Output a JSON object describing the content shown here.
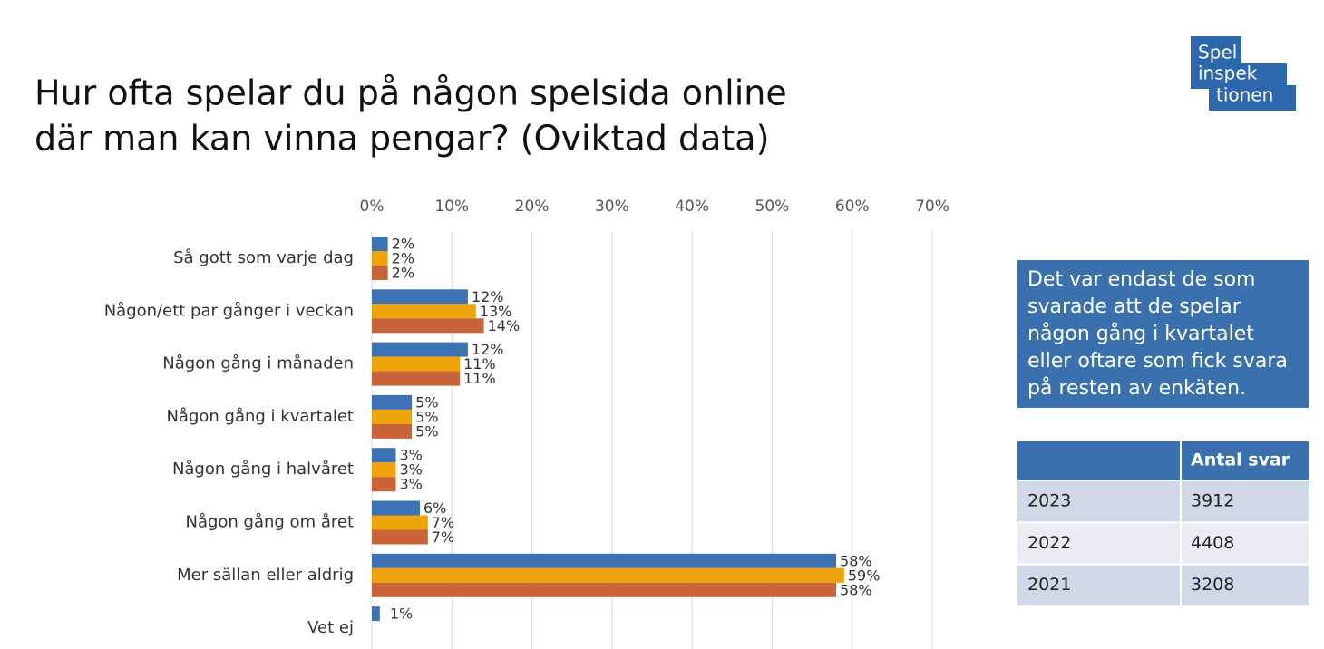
{
  "chart_data": {
    "type": "hbar",
    "title": [
      "Hur ofta spelar du på någon spelsida online",
      "där man kan vinna pengar? (Oviktad data)"
    ],
    "categories": [
      "Så gott som varje dag",
      "Någon/ett par gånger i veckan",
      "Någon gång i månaden",
      "Någon gång i kvartalet",
      "Någon gång i halvåret",
      "Någon gång om året",
      "Mer sällan eller aldrig",
      "Vet ej"
    ],
    "series": [
      {
        "color": "#3d72b4",
        "values": [
          2,
          12,
          12,
          5,
          3,
          6,
          58,
          1
        ],
        "value_labels": [
          "2%",
          "12%",
          "12%",
          "5%",
          "3%",
          "6%",
          "58%",
          "1%"
        ]
      },
      {
        "color": "#eea30b",
        "values": [
          2,
          13,
          11,
          5,
          3,
          7,
          59,
          null
        ],
        "value_labels": [
          "2%",
          "13%",
          "11%",
          "5%",
          "3%",
          "7%",
          "59%",
          null
        ]
      },
      {
        "color": "#c9633a",
        "values": [
          2,
          14,
          11,
          5,
          3,
          7,
          58,
          null
        ],
        "value_labels": [
          "2%",
          "14%",
          "11%",
          "5%",
          "3%",
          "7%",
          "58%",
          null
        ]
      }
    ],
    "xlim": [
      0,
      70
    ],
    "xticks": [
      {
        "value": 0,
        "label": "0%"
      },
      {
        "value": 10,
        "label": "10%"
      },
      {
        "value": 20,
        "label": "20%"
      },
      {
        "value": 30,
        "label": "30%"
      },
      {
        "value": 40,
        "label": "40%"
      },
      {
        "value": 50,
        "label": "50%"
      },
      {
        "value": 60,
        "label": "60%"
      },
      {
        "value": 70,
        "label": "70%"
      }
    ],
    "grid": true
  },
  "note": [
    "Det var endast de som",
    "svarade att de spelar",
    "någon gång i kvartalet",
    "eller oftare som fick svara",
    "på resten av enkäten."
  ],
  "table": {
    "header": "Antal svar",
    "rows": [
      [
        "2023",
        3912
      ],
      [
        "2022",
        4408
      ],
      [
        "2021",
        3208
      ]
    ]
  },
  "logo": [
    "Spel",
    "inspek",
    "tionen"
  ]
}
